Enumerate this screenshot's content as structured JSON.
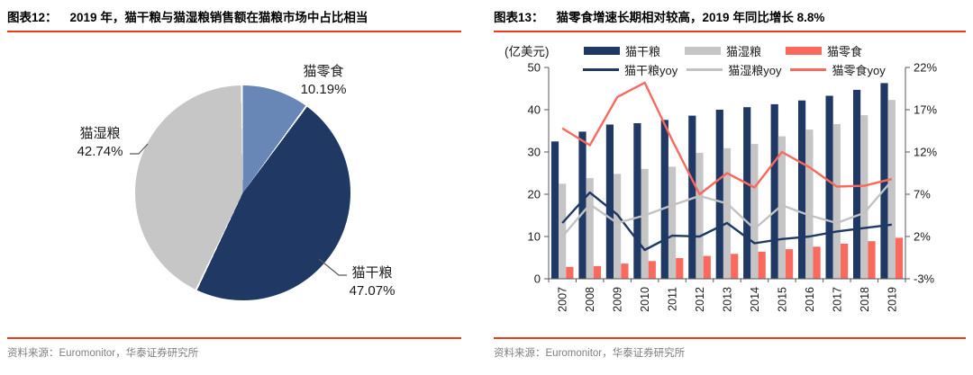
{
  "panels": [
    {
      "figure_label": "图表12：",
      "title": "2019 年，猫干粮与猫湿粮销售额在猫粮市场中占比相当",
      "source": "资料来源：Euromonitor，华泰证券研究所"
    },
    {
      "figure_label": "图表13：",
      "title": "猫零食增速长期相对较高，2019 年同比增长 8.8%",
      "unit_label": "(亿美元)",
      "source": "资料来源：Euromonitor，华泰证券研究所"
    }
  ],
  "chart_data": [
    {
      "type": "pie",
      "title": "2019 年，猫干粮与猫湿粮销售额在猫粮市场中占比相当",
      "labels": [
        "猫零食",
        "猫干粮",
        "猫湿粮"
      ],
      "values": [
        10.19,
        47.07,
        42.74
      ],
      "value_labels": [
        "10.19%",
        "47.07%",
        "42.74%"
      ],
      "colors": [
        "#6887b7",
        "#1f3864",
        "#c6c6c6"
      ],
      "start_angle_deg": 0,
      "direction": "clockwise"
    },
    {
      "type": "bar+line",
      "title": "猫零食增速长期相对较高，2019 年同比增长 8.8%",
      "categories": [
        "2007",
        "2008",
        "2009",
        "2010",
        "2011",
        "2012",
        "2013",
        "2014",
        "2015",
        "2016",
        "2017",
        "2018",
        "2019"
      ],
      "bar_series": [
        {
          "name": "猫干粮",
          "axis": "left",
          "color": "#1f3864",
          "values": [
            32.5,
            34.8,
            36.5,
            36.8,
            37.6,
            38.6,
            40.0,
            40.6,
            41.3,
            42.2,
            43.3,
            44.7,
            46.3
          ]
        },
        {
          "name": "猫湿粮",
          "axis": "left",
          "color": "#c5c5c5",
          "values": [
            22.5,
            23.8,
            24.8,
            26.0,
            26.5,
            29.8,
            30.9,
            31.9,
            33.7,
            35.3,
            36.6,
            38.7,
            42.3
          ]
        },
        {
          "name": "猫零食",
          "axis": "left",
          "color": "#f9695e",
          "values": [
            2.8,
            3.0,
            3.6,
            4.2,
            4.9,
            5.4,
            5.9,
            6.4,
            7.0,
            7.6,
            8.3,
            8.9,
            9.7
          ]
        }
      ],
      "line_series": [
        {
          "name": "猫干粮yoy",
          "axis": "right",
          "color": "#1f3864",
          "values": [
            3.6,
            7.2,
            4.6,
            0.4,
            2.1,
            2.0,
            3.6,
            1.2,
            1.7,
            2.0,
            2.6,
            3.0,
            3.4
          ]
        },
        {
          "name": "猫湿粮yoy",
          "axis": "right",
          "color": "#c2c2c2",
          "values": [
            2.0,
            5.8,
            3.6,
            4.5,
            5.7,
            6.8,
            5.9,
            2.9,
            5.7,
            4.5,
            3.6,
            4.8,
            8.6
          ]
        },
        {
          "name": "猫零食yoy",
          "axis": "right",
          "color": "#f9695e",
          "values": [
            14.8,
            12.8,
            18.5,
            20.2,
            13.4,
            7.0,
            9.5,
            7.8,
            12.0,
            10.2,
            7.9,
            8.0,
            8.8
          ]
        }
      ],
      "left_axis": {
        "min": 0,
        "max": 50,
        "ticks": [
          0,
          10,
          20,
          30,
          40,
          50
        ],
        "unit": "(亿美元)"
      },
      "right_axis": {
        "min": -3,
        "max": 22,
        "ticks": [
          -3,
          2,
          7,
          12,
          17,
          22
        ],
        "suffix": "%"
      },
      "legend_position": "top",
      "grid": false
    }
  ],
  "colors": {
    "accent_red_rule": "#ee3a1c",
    "navy": "#1f3864",
    "steel_blue": "#6887b7",
    "gray": "#c5c5c5",
    "salmon": "#f9695e",
    "axis_gray": "#595959",
    "source_text": "#7f7f7f"
  }
}
